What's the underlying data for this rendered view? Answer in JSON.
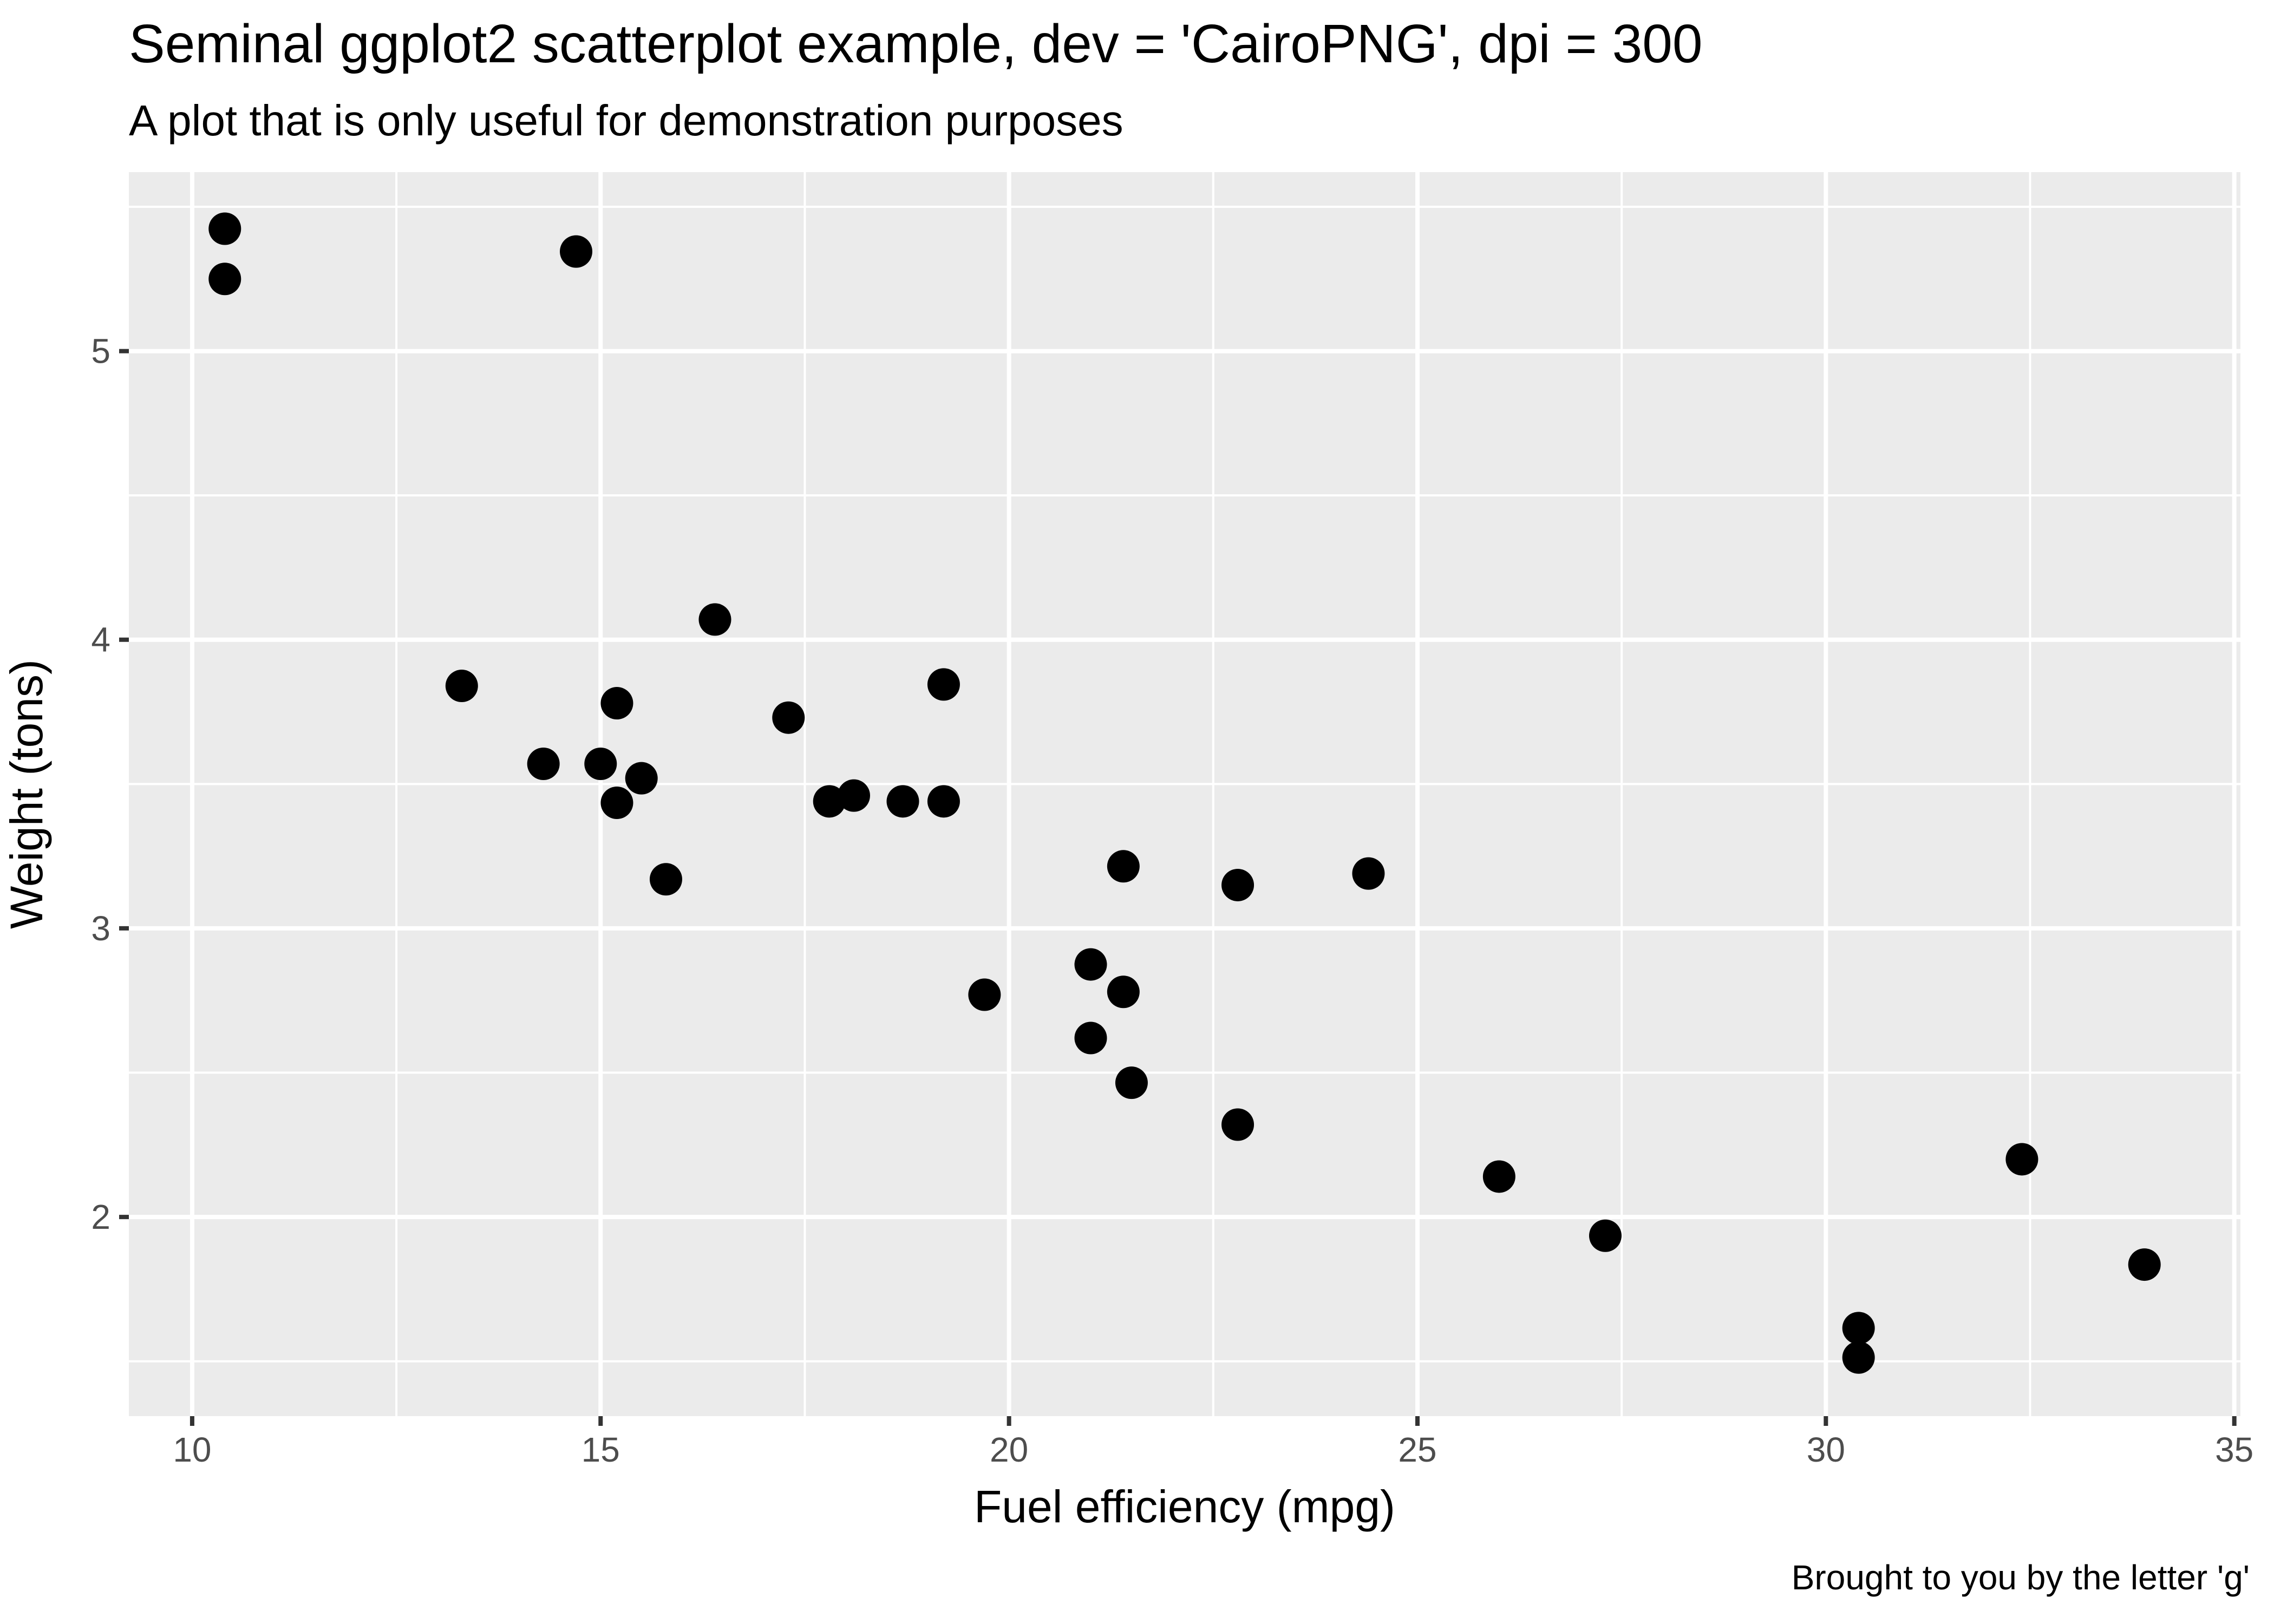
{
  "chart_data": {
    "type": "scatter",
    "title": "Seminal ggplot2 scatterplot example, dev = 'CairoPNG', dpi = 300",
    "subtitle": "A plot that is only useful for demonstration purposes",
    "caption": "Brought to you by the letter 'g'",
    "xlabel": "Fuel efficiency (mpg)",
    "ylabel": "Weight (tons)",
    "xlim": [
      9.225,
      35.075
    ],
    "ylim": [
      1.31,
      5.62
    ],
    "x_ticks": [
      10,
      15,
      20,
      25,
      30,
      35
    ],
    "x_tick_labels": [
      "10",
      "15",
      "20",
      "25",
      "30",
      "35"
    ],
    "y_ticks": [
      2,
      3,
      4,
      5
    ],
    "y_tick_labels": [
      "2",
      "3",
      "4",
      "5"
    ],
    "x_minor_grid": [
      12.5,
      17.5,
      22.5,
      27.5,
      32.5
    ],
    "y_minor_grid": [
      1.5,
      2.5,
      3.5,
      4.5,
      5.5
    ],
    "grid": true,
    "legend": "none",
    "panel_background": "#ebebeb",
    "grid_color": "#ffffff",
    "point_color": "#000000",
    "points": [
      {
        "x": 21.0,
        "y": 2.62
      },
      {
        "x": 21.0,
        "y": 2.875
      },
      {
        "x": 22.8,
        "y": 2.32
      },
      {
        "x": 21.4,
        "y": 3.215
      },
      {
        "x": 18.7,
        "y": 3.44
      },
      {
        "x": 18.1,
        "y": 3.46
      },
      {
        "x": 14.3,
        "y": 3.57
      },
      {
        "x": 24.4,
        "y": 3.19
      },
      {
        "x": 22.8,
        "y": 3.15
      },
      {
        "x": 19.2,
        "y": 3.44
      },
      {
        "x": 17.8,
        "y": 3.44
      },
      {
        "x": 16.4,
        "y": 4.07
      },
      {
        "x": 17.3,
        "y": 3.73
      },
      {
        "x": 15.2,
        "y": 3.78
      },
      {
        "x": 10.4,
        "y": 5.25
      },
      {
        "x": 10.4,
        "y": 5.424
      },
      {
        "x": 14.7,
        "y": 5.345
      },
      {
        "x": 32.4,
        "y": 2.2
      },
      {
        "x": 30.4,
        "y": 1.615
      },
      {
        "x": 33.9,
        "y": 1.835
      },
      {
        "x": 21.5,
        "y": 2.465
      },
      {
        "x": 15.5,
        "y": 3.52
      },
      {
        "x": 15.2,
        "y": 3.435
      },
      {
        "x": 13.3,
        "y": 3.84
      },
      {
        "x": 19.2,
        "y": 3.845
      },
      {
        "x": 27.3,
        "y": 1.935
      },
      {
        "x": 26.0,
        "y": 2.14
      },
      {
        "x": 30.4,
        "y": 1.513
      },
      {
        "x": 15.8,
        "y": 3.17
      },
      {
        "x": 19.7,
        "y": 2.77
      },
      {
        "x": 15.0,
        "y": 3.57
      },
      {
        "x": 21.4,
        "y": 2.78
      }
    ]
  }
}
